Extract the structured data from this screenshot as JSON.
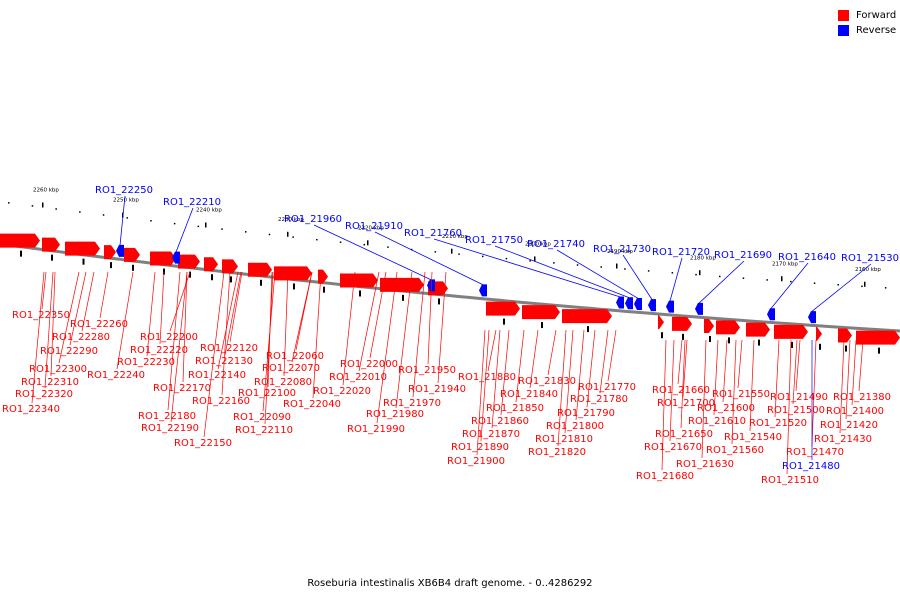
{
  "legend": [
    {
      "label": "Forward",
      "color": "#ff0000"
    },
    {
      "label": "Reverse",
      "color": "#0000ff"
    }
  ],
  "caption": "Roseburia intestinalis XB6B4 draft genome. - 0..4286292",
  "colors": {
    "forward": "#ff0000",
    "reverse": "#0000ff",
    "backbone": "#808080",
    "tick": "#000000"
  },
  "scale_labels": [
    "2260 kbp",
    "2250 kbp",
    "2240 kbp",
    "2230 kbp",
    "2220 kbp",
    "2210 kbp",
    "2200 kbp",
    "2190 kbp",
    "2180 kbp",
    "2170 kbp",
    "2160 kbp"
  ],
  "reverse_labels": [
    "RO1_22250",
    "RO1_22210",
    "RO1_21960",
    "RO1_21910",
    "RO1_21760",
    "RO1_21750",
    "RO1_21740",
    "RO1_21730",
    "RO1_21720",
    "RO1_21690",
    "RO1_21640",
    "RO1_21530"
  ],
  "forward_labels_left": [
    "RO1_22350",
    "RO1_22260",
    "RO1_22280",
    "RO1_22290",
    "RO1_22300",
    "RO1_22310",
    "RO1_22320",
    "RO1_22340",
    "RO1_22240",
    "RO1_22200",
    "RO1_22220",
    "RO1_22230",
    "RO1_22120",
    "RO1_22130",
    "RO1_22140",
    "RO1_22170",
    "RO1_22160",
    "RO1_22180",
    "RO1_22190",
    "RO1_22150",
    "RO1_22100",
    "RO1_22110",
    "RO1_22090",
    "RO1_22060",
    "RO1_22070",
    "RO1_22080",
    "RO1_22040",
    "RO1_22020",
    "RO1_22000",
    "RO1_22010",
    "RO1_21950",
    "RO1_21940",
    "RO1_21970",
    "RO1_21980",
    "RO1_21990"
  ],
  "forward_labels_mid": [
    "RO1_21880",
    "RO1_21830",
    "RO1_21770",
    "RO1_21840",
    "RO1_21780",
    "RO1_21850",
    "RO1_21860",
    "RO1_21790",
    "RO1_21800",
    "RO1_21870",
    "RO1_21810",
    "RO1_21890",
    "RO1_21820",
    "RO1_21900"
  ],
  "forward_labels_right": [
    "RO1_21660",
    "RO1_21700",
    "RO1_21550",
    "RO1_21600",
    "RO1_21610",
    "RO1_21520",
    "RO1_21540",
    "RO1_21650",
    "RO1_21670",
    "RO1_21560",
    "RO1_21630",
    "RO1_21680",
    "RO1_21490",
    "RO1_21500",
    "RO1_21470",
    "RO1_21510",
    "RO1_21380",
    "RO1_21400",
    "RO1_21420",
    "RO1_21430"
  ],
  "reverse_label_bottom": "RO1_21480"
}
